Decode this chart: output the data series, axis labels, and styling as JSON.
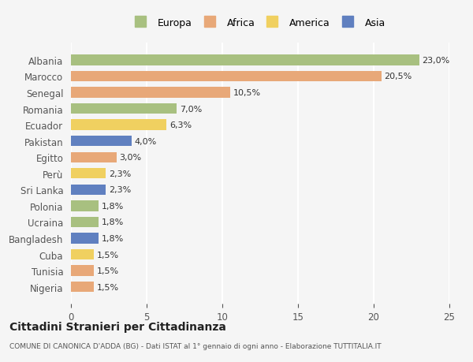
{
  "countries": [
    "Albania",
    "Marocco",
    "Senegal",
    "Romania",
    "Ecuador",
    "Pakistan",
    "Egitto",
    "Perù",
    "Sri Lanka",
    "Polonia",
    "Ucraina",
    "Bangladesh",
    "Cuba",
    "Tunisia",
    "Nigeria"
  ],
  "values": [
    23.0,
    20.5,
    10.5,
    7.0,
    6.3,
    4.0,
    3.0,
    2.3,
    2.3,
    1.8,
    1.8,
    1.8,
    1.5,
    1.5,
    1.5
  ],
  "continents": [
    "Europa",
    "Africa",
    "Africa",
    "Europa",
    "America",
    "Asia",
    "Africa",
    "America",
    "Asia",
    "Europa",
    "Europa",
    "Asia",
    "America",
    "Africa",
    "Africa"
  ],
  "colors": {
    "Europa": "#a8c080",
    "Africa": "#e8a878",
    "America": "#f0d060",
    "Asia": "#6080c0"
  },
  "legend_order": [
    "Europa",
    "Africa",
    "America",
    "Asia"
  ],
  "title": "Cittadini Stranieri per Cittadinanza",
  "subtitle": "COMUNE DI CANONICA D'ADDA (BG) - Dati ISTAT al 1° gennaio di ogni anno - Elaborazione TUTTITALIA.IT",
  "xlim": [
    0,
    25
  ],
  "xticks": [
    0,
    5,
    10,
    15,
    20,
    25
  ],
  "background_color": "#f5f5f5",
  "grid_color": "#ffffff",
  "bar_height": 0.65
}
